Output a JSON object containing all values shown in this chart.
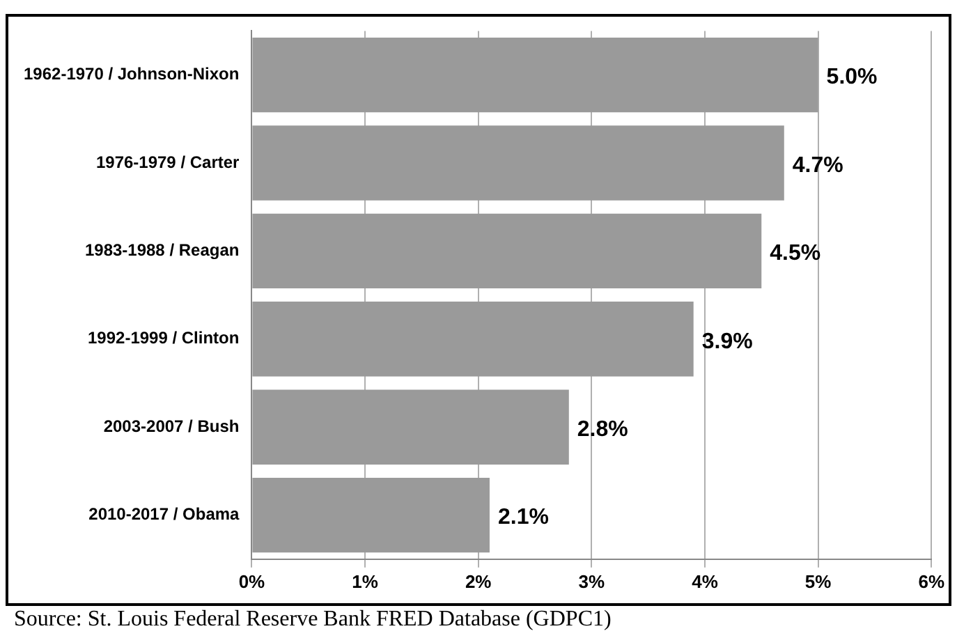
{
  "chart_data": {
    "type": "bar",
    "orientation": "horizontal",
    "categories": [
      "1962-1970 / Johnson-Nixon",
      "1976-1979 / Carter",
      "1983-1988 / Reagan",
      "1992-1999 / Clinton",
      "2003-2007 / Bush",
      "2010-2017 / Obama"
    ],
    "values": [
      5.0,
      4.7,
      4.5,
      3.9,
      2.8,
      2.1
    ],
    "value_labels": [
      "5.0%",
      "4.7%",
      "4.5%",
      "3.9%",
      "2.8%",
      "2.1%"
    ],
    "color": "#9a9a9a",
    "xlim": [
      0,
      6
    ],
    "xticks": [
      {
        "value": 0,
        "label": "0%"
      },
      {
        "value": 1,
        "label": "1%"
      },
      {
        "value": 2,
        "label": "2%"
      },
      {
        "value": 3,
        "label": "3%"
      },
      {
        "value": 4,
        "label": "4%"
      },
      {
        "value": 5,
        "label": "5%"
      },
      {
        "value": 6,
        "label": "6%"
      }
    ],
    "grid": "x",
    "legend": false,
    "annotations": [
      "Source: St. Louis Federal Reserve Bank FRED Database (GDPC1)"
    ]
  }
}
